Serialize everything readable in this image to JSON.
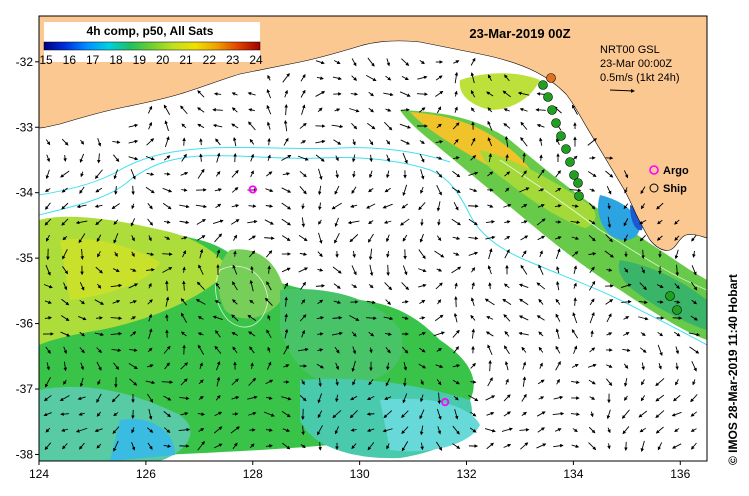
{
  "title": "23-Mar-2019 00Z",
  "colorbar": {
    "label": "4h comp, p50, All Sats",
    "ticks": [
      "15",
      "16",
      "17",
      "18",
      "19",
      "20",
      "21",
      "22",
      "23",
      "24"
    ],
    "colors": [
      "#000080",
      "#0020d0",
      "#0070ff",
      "#00b0ff",
      "#00d8d0",
      "#20c060",
      "#60d030",
      "#b0e020",
      "#e8e010",
      "#f0b000",
      "#f07000",
      "#e03000",
      "#a00000"
    ]
  },
  "info": {
    "line1": "NRT00 GSL",
    "line2": "23-Mar 00:00Z",
    "line3": "0.5m/s (1kt 24h)"
  },
  "legend": {
    "argo_label": "Argo",
    "ship_label": "Ship",
    "argo_color": "#ff00ff",
    "ship_color": "#000000"
  },
  "credit": "© IMOS 28-Mar-2019 11:40 Hobart",
  "axes": {
    "x_ticks": [
      "124",
      "126",
      "128",
      "130",
      "132",
      "134",
      "136"
    ],
    "y_ticks": [
      "-32",
      "-33",
      "-34",
      "-35",
      "-36",
      "-37",
      "-38"
    ],
    "lon_range": [
      124,
      136.5
    ],
    "lat_range": [
      -38.1,
      -31.3
    ]
  },
  "colors": {
    "land": "#fcc892",
    "arrow": "#000000",
    "contour": "#40e0f0",
    "ship_track": "#20a020"
  },
  "argo_floats": [
    {
      "lon": 128.0,
      "lat": -33.95
    },
    {
      "lon": 131.6,
      "lat": -37.2
    }
  ]
}
